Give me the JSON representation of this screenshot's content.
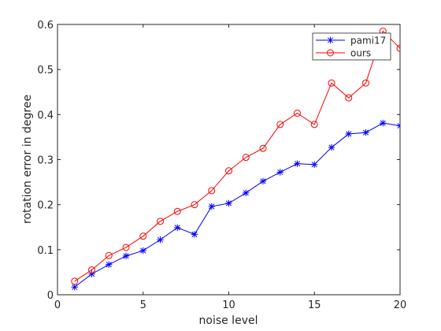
{
  "chart_data": {
    "type": "line",
    "title": "",
    "xlabel": "noise level",
    "ylabel": "rotation error in degree",
    "xlim": [
      0,
      20
    ],
    "ylim": [
      0,
      0.6
    ],
    "xticks": [
      0,
      5,
      10,
      15,
      20
    ],
    "xtick_labels": [
      "0",
      "5",
      "10",
      "15",
      "20"
    ],
    "yticks": [
      0,
      0.1,
      0.2,
      0.3,
      0.4,
      0.5,
      0.6
    ],
    "ytick_labels": [
      "0",
      "0.1",
      "0.2",
      "0.3",
      "0.4",
      "0.5",
      "0.6"
    ],
    "grid": false,
    "legend_position": "top-right",
    "x": [
      1,
      2,
      3,
      4,
      5,
      6,
      7,
      8,
      9,
      10,
      11,
      12,
      13,
      14,
      15,
      16,
      17,
      18,
      19,
      20
    ],
    "series": [
      {
        "name": "pami17",
        "color": "#0000ff",
        "marker": "asterisk",
        "values": [
          0.017,
          0.046,
          0.067,
          0.086,
          0.098,
          0.122,
          0.149,
          0.134,
          0.196,
          0.203,
          0.226,
          0.252,
          0.272,
          0.291,
          0.289,
          0.327,
          0.357,
          0.36,
          0.381,
          0.375
        ]
      },
      {
        "name": "ours",
        "color": "#ff0000",
        "marker": "circle",
        "values": [
          0.03,
          0.055,
          0.087,
          0.105,
          0.13,
          0.163,
          0.185,
          0.2,
          0.231,
          0.275,
          0.305,
          0.325,
          0.378,
          0.403,
          0.378,
          0.47,
          0.437,
          0.47,
          0.585,
          0.547
        ]
      }
    ]
  }
}
